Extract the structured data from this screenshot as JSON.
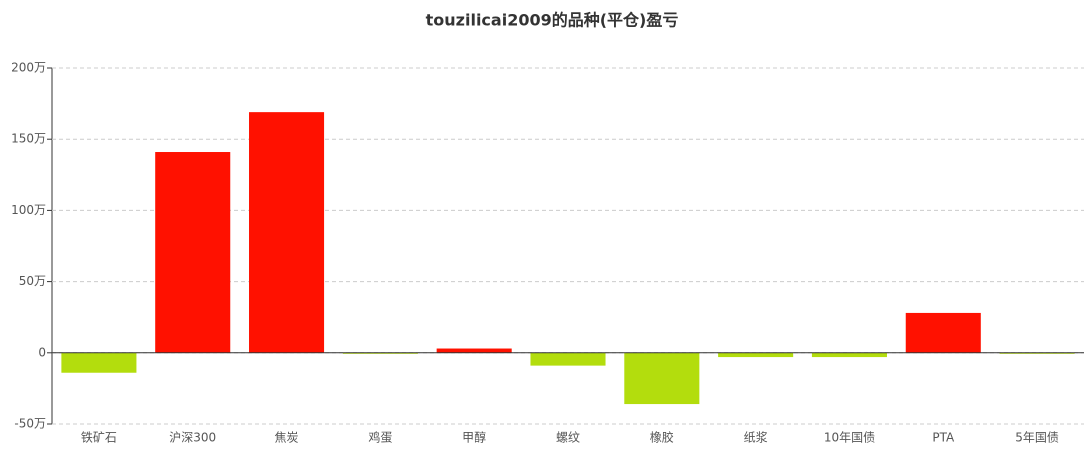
{
  "chart_data": {
    "type": "bar",
    "title": "touzilicai2009的品种(平仓)盈亏",
    "categories": [
      "铁矿石",
      "沪深300",
      "焦炭",
      "鸡蛋",
      "甲醇",
      "螺纹",
      "橡胶",
      "纸浆",
      "10年国债",
      "PTA",
      "5年国债"
    ],
    "values": [
      -14,
      141,
      169,
      -0.5,
      3,
      -9,
      -36,
      -3,
      -3,
      28,
      -0.5
    ],
    "positive_color": "#ff1100",
    "negative_color": "#b3dd0d",
    "ylim": [
      -50,
      200
    ],
    "yticks": [
      {
        "value": -50,
        "label": "-50万"
      },
      0,
      {
        "value": 50,
        "label": "50万"
      },
      {
        "value": 100,
        "label": "100万"
      },
      {
        "value": 150,
        "label": "150万"
      },
      {
        "value": 200,
        "label": "200万"
      }
    ],
    "grid": true
  }
}
